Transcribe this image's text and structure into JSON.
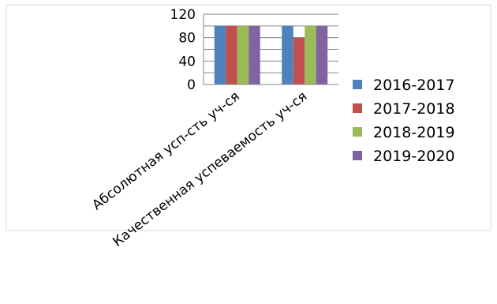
{
  "chart_data": {
    "type": "bar",
    "categories": [
      "Абсолютная усп-сть уч-ся",
      "Качественная успеваемость уч-ся"
    ],
    "series": [
      {
        "name": "2016-2017",
        "values": [
          100,
          100
        ],
        "color": "#4F81BD"
      },
      {
        "name": "2017-2018",
        "values": [
          100,
          80
        ],
        "color": "#C0504D"
      },
      {
        "name": "2018-2019",
        "values": [
          100,
          100
        ],
        "color": "#9BBB59"
      },
      {
        "name": "2019-2020",
        "values": [
          100,
          100
        ],
        "color": "#8064A2"
      }
    ],
    "yticks": [
      "0",
      "20",
      "40",
      "60",
      "80",
      "100",
      "120"
    ],
    "yticks_labeled": [
      "0",
      "40",
      "80",
      "120"
    ],
    "ylim": [
      0,
      120
    ],
    "grid": true,
    "legend_position": "right"
  }
}
